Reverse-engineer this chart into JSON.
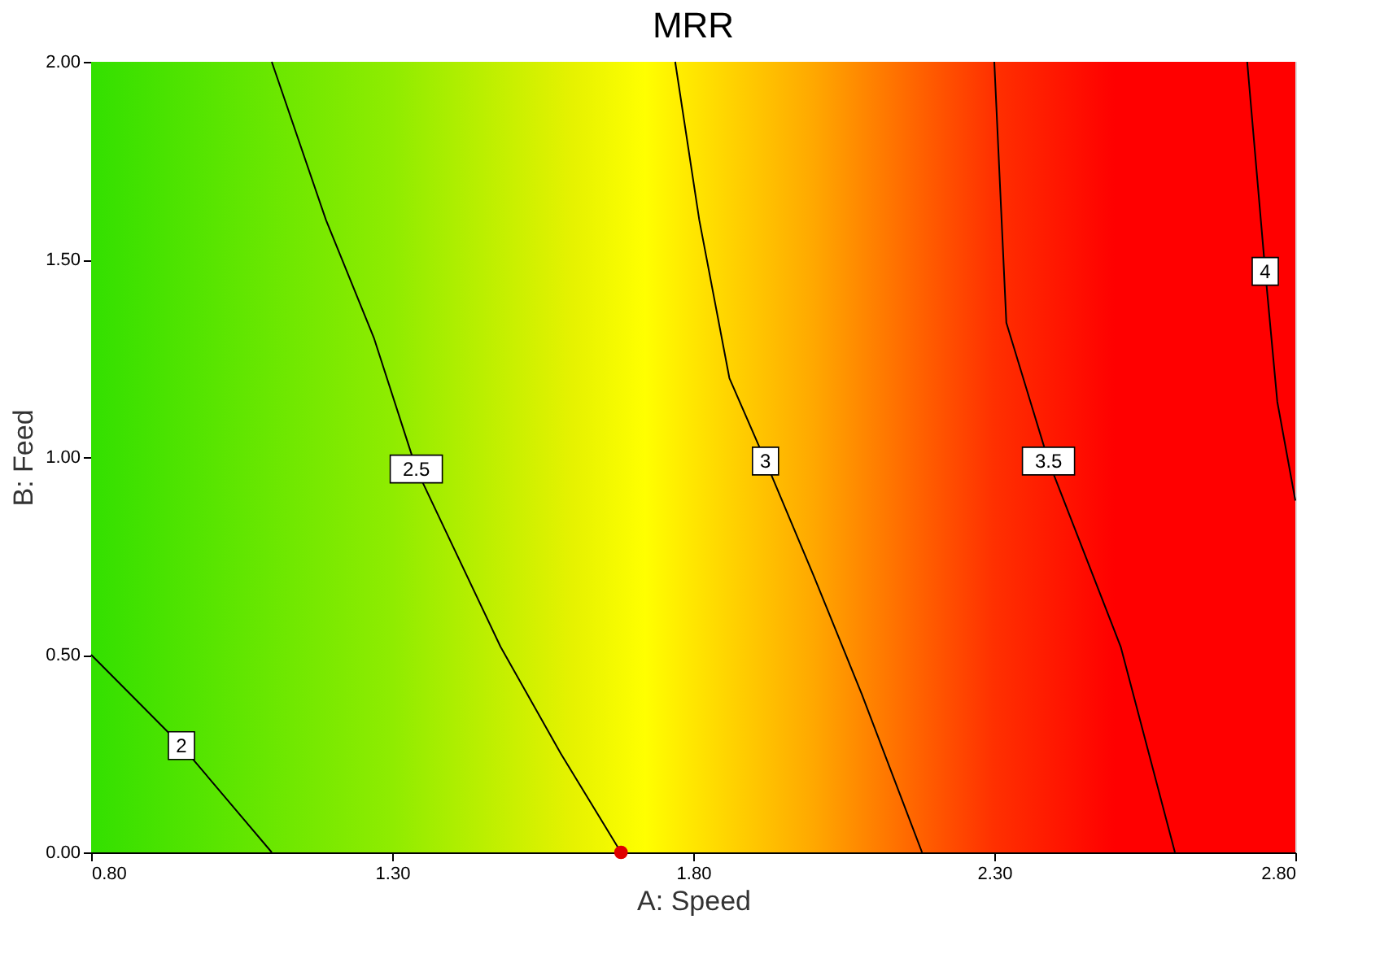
{
  "chart_data": {
    "type": "line",
    "title": "MRR",
    "xlabel": "A: Speed",
    "ylabel": "B: Feed",
    "xlim": [
      0.8,
      2.8
    ],
    "ylim": [
      0,
      2
    ],
    "xticks": [
      {
        "value": 0.8,
        "label": "0.80"
      },
      {
        "value": 1.3,
        "label": "1.30"
      },
      {
        "value": 1.8,
        "label": "1.80"
      },
      {
        "value": 2.3,
        "label": "2.30"
      },
      {
        "value": 2.8,
        "label": "2.80"
      }
    ],
    "yticks": [
      {
        "value": 0,
        "label": "0.00"
      },
      {
        "value": 0.5,
        "label": "0.50"
      },
      {
        "value": 1,
        "label": "1.00"
      },
      {
        "value": 1.5,
        "label": "1.50"
      },
      {
        "value": 2,
        "label": "2.00"
      }
    ],
    "marker": "none",
    "line_style": "solid",
    "series": [
      {
        "name": "2",
        "color": "#000000",
        "x": [
          0.8,
          0.95,
          1.1
        ],
        "values": [
          0.5,
          0.27,
          0.0
        ]
      },
      {
        "name": "2.5",
        "color": "#000000",
        "x": [
          1.1,
          1.19,
          1.27,
          1.34,
          1.48,
          1.58,
          1.68
        ],
        "values": [
          2.0,
          1.6,
          1.3,
          0.97,
          0.52,
          0.25,
          0.0
        ]
      },
      {
        "name": "3",
        "color": "#000000",
        "x": [
          1.77,
          1.81,
          1.86,
          1.92,
          2.0,
          2.08,
          2.18
        ],
        "values": [
          2.0,
          1.6,
          1.2,
          0.99,
          0.7,
          0.4,
          0.0
        ]
      },
      {
        "name": "3.5",
        "color": "#000000",
        "x": [
          2.3,
          2.32,
          2.39,
          2.51,
          2.6
        ],
        "values": [
          2.0,
          1.34,
          0.99,
          0.52,
          0.0
        ]
      },
      {
        "name": "4",
        "color": "#000000",
        "x": [
          2.72,
          2.75,
          2.77,
          2.8
        ],
        "values": [
          2.0,
          1.47,
          1.14,
          0.89
        ]
      },
      {
        "type": "scatter",
        "marker": "circle",
        "color": "#e00000",
        "x": [
          1.68
        ],
        "values": [
          0.0
        ]
      }
    ]
  }
}
